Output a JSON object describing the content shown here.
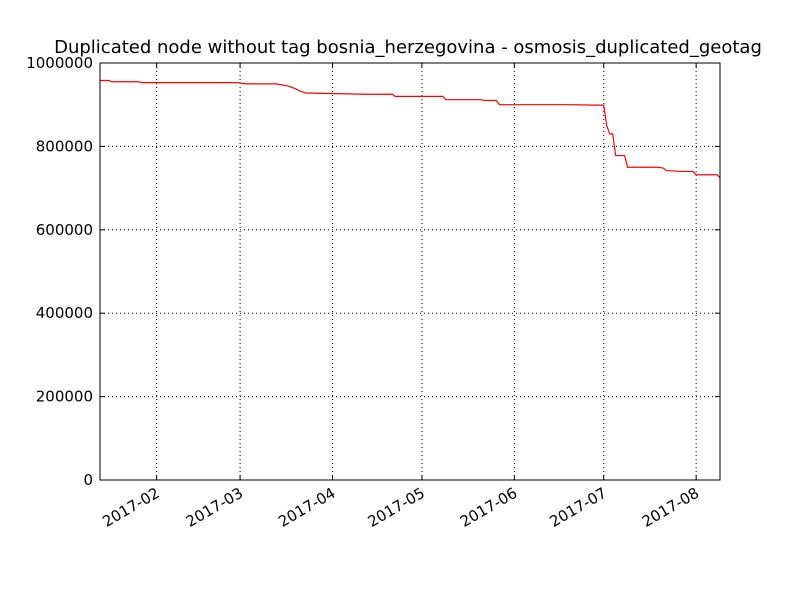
{
  "chart_data": {
    "type": "line",
    "title": "Duplicated node without tag bosnia_herzegovina - osmosis_duplicated_geotag",
    "xlabel": "",
    "ylabel": "",
    "grid": true,
    "x_range": [
      "2017-01-13",
      "2017-08-09"
    ],
    "ylim": [
      0,
      1000000
    ],
    "y_ticks": [
      0,
      200000,
      400000,
      600000,
      800000,
      1000000
    ],
    "y_tick_labels": [
      "0",
      "200000",
      "400000",
      "600000",
      "800000",
      "1000000"
    ],
    "x_ticks": [
      "2017-02-01",
      "2017-03-01",
      "2017-04-01",
      "2017-05-01",
      "2017-06-01",
      "2017-07-01",
      "2017-08-01"
    ],
    "x_tick_labels": [
      "2017-02",
      "2017-03",
      "2017-04",
      "2017-05",
      "2017-06",
      "2017-07",
      "2017-08"
    ],
    "series": [
      {
        "color": "#ff0000",
        "x": [
          "2017-01-13",
          "2017-01-16",
          "2017-01-17",
          "2017-01-26",
          "2017-01-27",
          "2017-02-28",
          "2017-03-03",
          "2017-03-13",
          "2017-03-17",
          "2017-03-19",
          "2017-03-21",
          "2017-03-23",
          "2017-04-12",
          "2017-04-21",
          "2017-04-22",
          "2017-05-08",
          "2017-05-09",
          "2017-05-21",
          "2017-05-22",
          "2017-05-26",
          "2017-05-27",
          "2017-06-20",
          "2017-06-28",
          "2017-07-01",
          "2017-07-02",
          "2017-07-03",
          "2017-07-04",
          "2017-07-05",
          "2017-07-08",
          "2017-07-09",
          "2017-07-19",
          "2017-07-21",
          "2017-07-22",
          "2017-07-27",
          "2017-07-31",
          "2017-08-01",
          "2017-08-08",
          "2017-08-09"
        ],
        "values": [
          958000,
          958000,
          955000,
          955000,
          953000,
          953000,
          950000,
          950000,
          945000,
          940000,
          933000,
          928000,
          925000,
          925000,
          920000,
          920000,
          912000,
          912000,
          910000,
          910000,
          900000,
          900000,
          899000,
          899000,
          850000,
          830000,
          830000,
          778000,
          778000,
          750000,
          750000,
          748000,
          742000,
          740000,
          740000,
          732000,
          732000,
          725000
        ]
      }
    ]
  }
}
